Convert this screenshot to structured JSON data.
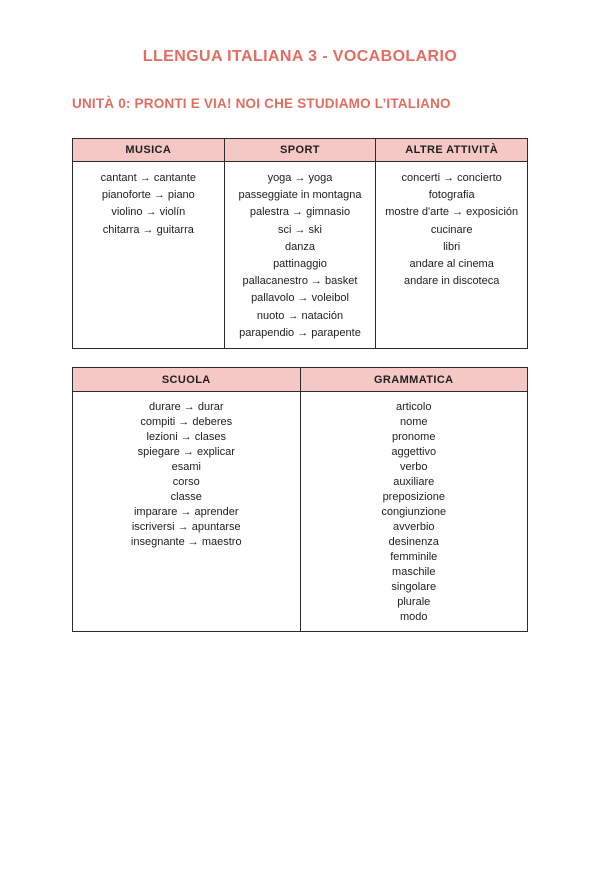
{
  "page": {
    "title": "LLENGUA ITALIANA 3 - VOCABOLARIO",
    "subtitle": "UNITÀ 0: PRONTI E VIA! NOI CHE STUDIAMO L’ITALIANO"
  },
  "colors": {
    "accent": "#e26d62",
    "table_header_bg": "#f5c8c6",
    "table_border": "#2b2b2b",
    "body_text": "#212121"
  },
  "tables": [
    {
      "columns": [
        {
          "header": "MUSICA",
          "items": [
            "cantant → cantante",
            "pianoforte → piano",
            "violino → violín",
            "chitarra → guitarra"
          ]
        },
        {
          "header": "SPORT",
          "items": [
            "yoga → yoga",
            "passeggiate in montagna",
            "palestra → gimnasio",
            "sci → ski",
            "danza",
            "pattinaggio",
            "pallacanestro → basket",
            "pallavolo → voleibol",
            "nuoto → natación",
            "parapendio → parapente"
          ]
        },
        {
          "header": "ALTRE ATTIVITÀ",
          "items": [
            "concerti → concierto",
            "fotografia",
            "mostre d'arte → exposición",
            "cucinare",
            "libri",
            "andare al cinema",
            "andare in discoteca"
          ]
        }
      ]
    },
    {
      "columns": [
        {
          "header": "SCUOLA",
          "items": [
            "durare → durar",
            "compiti → deberes",
            "lezioni → clases",
            "spiegare → explicar",
            "esami",
            "corso",
            "classe",
            "imparare → aprender",
            "iscriversi → apuntarse",
            "insegnante → maestro"
          ]
        },
        {
          "header": "GRAMMATICA",
          "items": [
            "articolo",
            "nome",
            "pronome",
            "aggettivo",
            "verbo",
            "auxiliare",
            "preposizione",
            "congiunzione",
            "avverbio",
            "desinenza",
            "femminile",
            "maschile",
            "singolare",
            "plurale",
            "modo"
          ]
        }
      ]
    }
  ]
}
